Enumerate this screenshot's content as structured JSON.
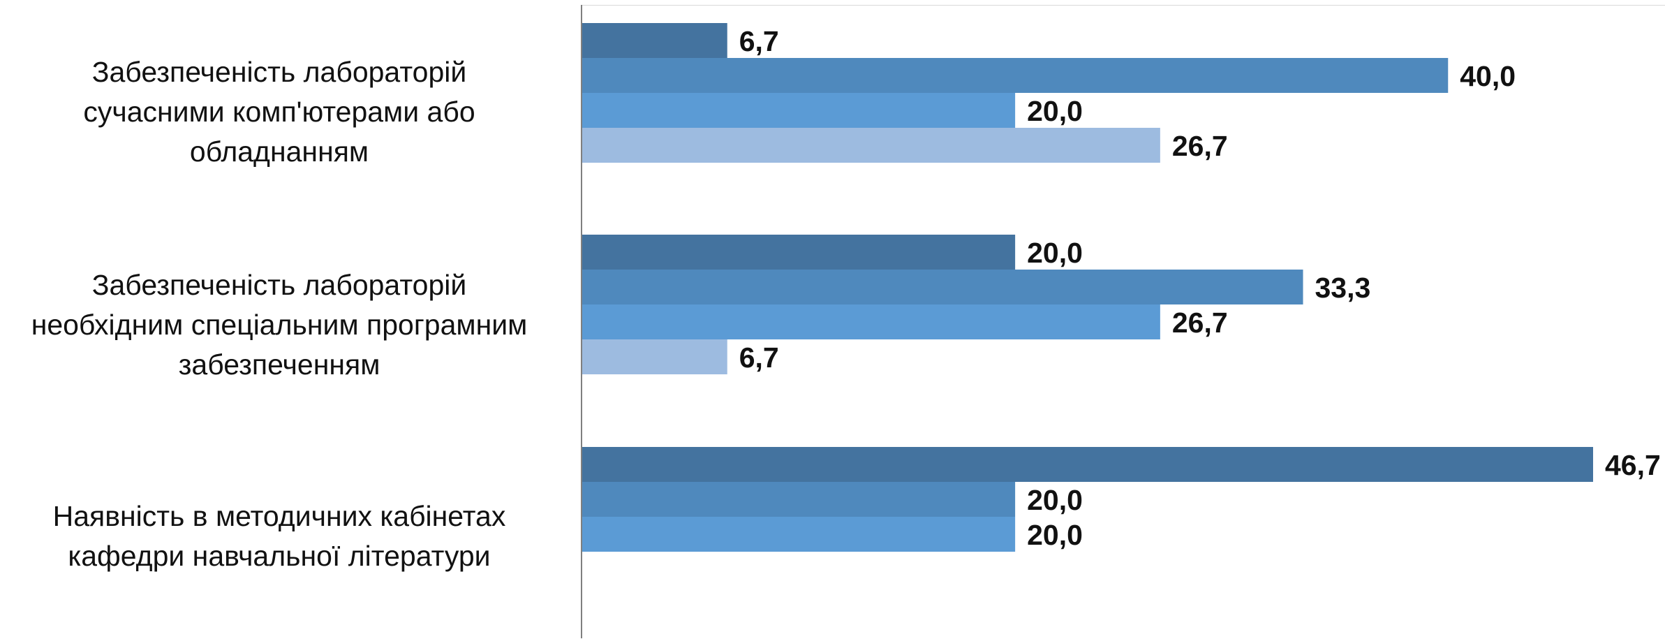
{
  "chart_data": {
    "type": "bar",
    "orientation": "horizontal",
    "xlim": [
      0,
      50
    ],
    "grid": false,
    "legend": "none",
    "categories": [
      {
        "lines": [
          "Забезпеченість лабораторій",
          "сучасними комп'ютерами або",
          "обладнанням"
        ],
        "values": [
          6.7,
          40.0,
          20.0,
          26.7
        ],
        "labels": [
          "6,7",
          "40,0",
          "20,0",
          "26,7"
        ]
      },
      {
        "lines": [
          "Забезпеченість лабораторій",
          "необхідним спеціальним програмним",
          "забезпеченням"
        ],
        "values": [
          20.0,
          33.3,
          26.7,
          6.7
        ],
        "labels": [
          "20,0",
          "33,3",
          "26,7",
          "6,7"
        ]
      },
      {
        "lines": [
          "Наявність в методичних кабінетах",
          "кафедри навчальної літератури"
        ],
        "values": [
          46.7,
          20.0,
          20.0
        ],
        "labels": [
          "46,7",
          "20,0",
          "20,0"
        ]
      }
    ],
    "series_colors": [
      "#44739f",
      "#4f89bd",
      "#5b9bd5",
      "#9dbbe0"
    ]
  }
}
